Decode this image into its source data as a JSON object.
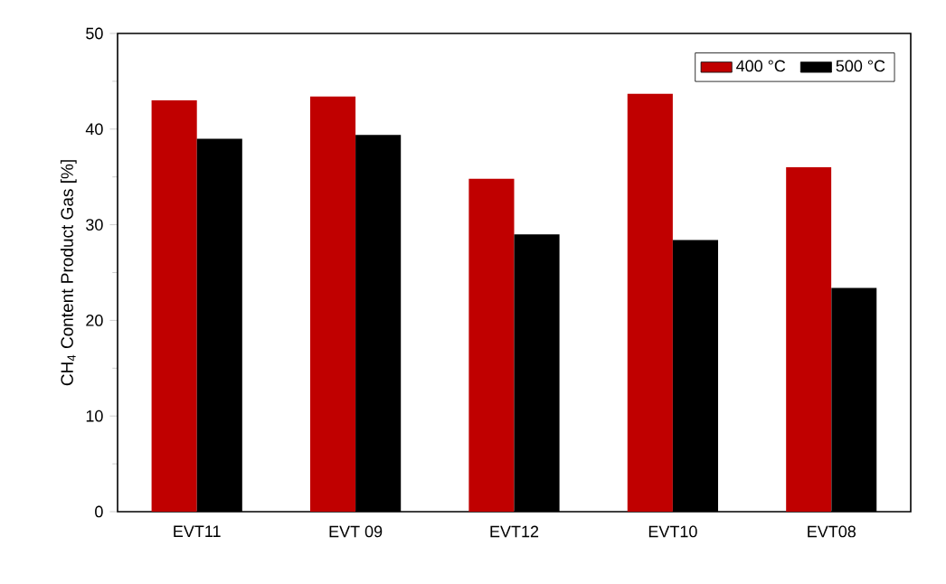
{
  "chart_data": {
    "type": "bar",
    "ylabel": "CH$_{4}$ Content Product Gas [%]",
    "categories": [
      "EVT11",
      "EVT 09",
      "EVT12",
      "EVT10",
      "EVT08"
    ],
    "series": [
      {
        "name": "400 °C",
        "color": "#c00000",
        "values": [
          43.0,
          43.4,
          34.8,
          43.7,
          36.0
        ]
      },
      {
        "name": "500 °C",
        "color": "#000000",
        "values": [
          39.0,
          39.4,
          29.0,
          28.4,
          23.4
        ]
      }
    ],
    "ylim": [
      0,
      50
    ],
    "yticks": [
      0,
      10,
      20,
      30,
      40,
      50
    ],
    "grid": false,
    "legend": "top right"
  }
}
